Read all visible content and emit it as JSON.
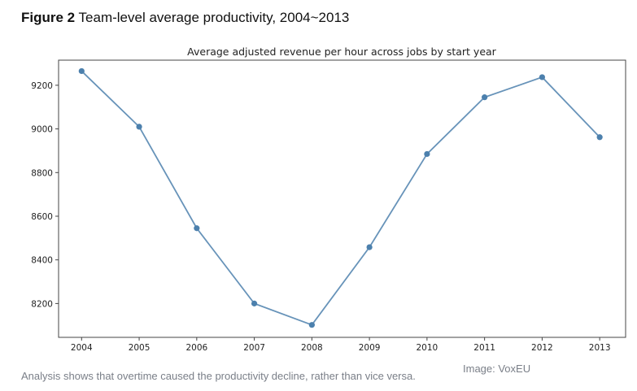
{
  "figure": {
    "label": "Figure 2",
    "title": "Team-level average productivity, 2004~2013"
  },
  "caption": "Analysis shows that overtime caused the productivity decline, rather than vice versa.",
  "credit": "Image: VoxEU",
  "chart_data": {
    "type": "line",
    "title": "Average adjusted revenue per hour across jobs by start year",
    "xlabel": "",
    "ylabel": "",
    "x": [
      2004,
      2005,
      2006,
      2007,
      2008,
      2009,
      2010,
      2011,
      2012,
      2013
    ],
    "x_ticks": [
      "2004",
      "2005",
      "2006",
      "2007",
      "2008",
      "2009",
      "2010",
      "2011",
      "2012",
      "2013"
    ],
    "y_ticks": [
      "8200",
      "8400",
      "8600",
      "8800",
      "9000",
      "9200"
    ],
    "y_tick_values": [
      8200,
      8400,
      8600,
      8800,
      9000,
      9200
    ],
    "xlim": [
      2003.6,
      2013.45
    ],
    "ylim": [
      8045,
      9315
    ],
    "series": [
      {
        "values": [
          9265,
          9010,
          8545,
          8200,
          8102,
          8458,
          8885,
          9145,
          9237,
          8962
        ],
        "color": "#4c80ad",
        "marker": "circle"
      }
    ],
    "grid": false,
    "legend": "none"
  }
}
